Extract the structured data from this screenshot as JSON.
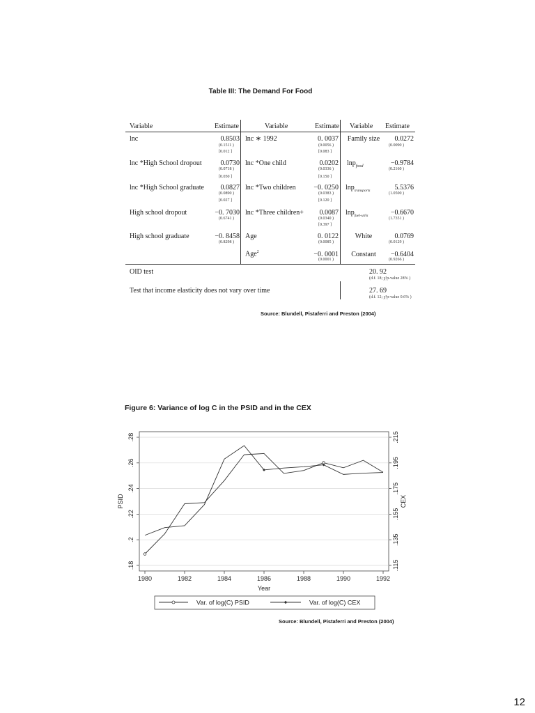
{
  "table": {
    "title": "Table III: The Demand For Food",
    "headers": {
      "variable1": "Variable",
      "estimate1": "Estimate",
      "variable2": "Variable",
      "estimate2": "Estimate",
      "variable3": "Variable",
      "estimate3": "Estimate"
    },
    "col1": [
      {
        "label": "lnc",
        "est": "0.8503",
        "se": "(0.1511 )",
        "br": "[0.012 ]"
      },
      {
        "label": "lnc *High School dropout",
        "est": "0.0730",
        "se": "(0.0718 )",
        "br": "[0.050 ]"
      },
      {
        "label": "lnc *High School graduate",
        "est": "0.0827",
        "se": "(0.0890 )",
        "br": "[0.027 ]"
      },
      {
        "label": "High school dropout",
        "est": "−0. 7030",
        "se": "(0.6741 )",
        "br": ""
      },
      {
        "label": "High school graduate",
        "est": "−0. 8458",
        "se": "(0.8298 )",
        "br": ""
      }
    ],
    "col2": [
      {
        "label": "lnc ∗ 1992",
        "est": "0. 0037",
        "se": "(0.0056 )",
        "br": "[0.083 ]"
      },
      {
        "label": "lnc *One child",
        "est": "0.0202",
        "se": "(0.0336 )",
        "br": "[0.150 ]"
      },
      {
        "label": "lnc *Two children",
        "est": "−0. 0250",
        "se": "(0.0383 )",
        "br": "[0.120 ]"
      },
      {
        "label": "lnc *Three children+",
        "est": "0.0087",
        "se": "(0.0340 )",
        "br": "[0.397 ]"
      },
      {
        "label": "Age",
        "est": "0. 0122",
        "se": "(0.0085 )",
        "br": ""
      },
      {
        "label": "Age",
        "label_sup": "2",
        "est": "−0. 0001",
        "se": "(0.0001 )",
        "br": ""
      }
    ],
    "col3": [
      {
        "label": "Family size",
        "label_sub": "",
        "est": "0.0272",
        "se": "(0.0090 )"
      },
      {
        "label": "lnp",
        "label_sub": "food",
        "est": "−0.9784",
        "se": "(0.2160 )"
      },
      {
        "label": "lnp",
        "label_sub": "transports",
        "est": "5.5376",
        "se": "(1.0500 )"
      },
      {
        "label": "lnp",
        "label_sub": "fuel-utils",
        "est": "−0.6670",
        "se": "(1.7351 )"
      },
      {
        "label": "White",
        "label_sub": "",
        "est": "0.0769",
        "se": "(0.0129 )"
      },
      {
        "label": "Constant",
        "label_sub": "",
        "est": "−0.6404",
        "se": "(0.9266 )"
      }
    ],
    "oid_label": "OID test",
    "oid_value": "20. 92",
    "oid_sub": "(d.f. 18; χ²p-value 28% )",
    "test_label": "Test that income elasticity does not vary over time",
    "test_value": "27. 69",
    "test_sub": "(d.f. 12; χ²p-value 0.6% )",
    "source": "Source: Blundell, Pistaferri and Preston (2004)"
  },
  "figure": {
    "title": "Figure 6: Variance of log C in the PSID and in the CEX",
    "source": "Source: Blundell, Pistaferri and Preston (2004)"
  },
  "chart_data": {
    "type": "line",
    "title": "",
    "xlabel": "Year",
    "ylabel_left": "PSID",
    "ylabel_right": "CEX",
    "x": [
      1980,
      1981,
      1982,
      1983,
      1984,
      1985,
      1986,
      1987,
      1988,
      1989,
      1990,
      1991,
      1992
    ],
    "xticks": [
      "1980",
      "1982",
      "1984",
      "1986",
      "1988",
      "1990",
      "1992"
    ],
    "yticks_left": [
      ".18",
      ".2",
      ".22",
      ".24",
      ".26",
      ".28"
    ],
    "yticks_right": [
      ".115",
      ".135",
      ".155",
      ".175",
      ".195",
      ".215"
    ],
    "ylim_left": [
      0.18,
      0.28
    ],
    "ylim_right": [
      0.115,
      0.215
    ],
    "grid": true,
    "legend_position": "bottom",
    "series": [
      {
        "name": "Var. of log(C) PSID",
        "axis": "left",
        "marker": "hollow-circle",
        "values": [
          0.1889,
          0.2047,
          0.2281,
          0.229,
          0.2462,
          0.2664,
          0.2673,
          0.2518,
          0.2541,
          0.2601,
          0.2562,
          0.262,
          0.2527
        ]
      },
      {
        "name": "Var. of log(C) CEX",
        "axis": "right",
        "marker": "filled-diamond",
        "values": [
          0.1385,
          0.1445,
          0.146,
          0.1625,
          0.198,
          0.2085,
          0.1895,
          0.191,
          0.192,
          0.1935,
          0.186,
          0.187,
          0.1875
        ]
      }
    ]
  },
  "page": {
    "number": "12"
  }
}
